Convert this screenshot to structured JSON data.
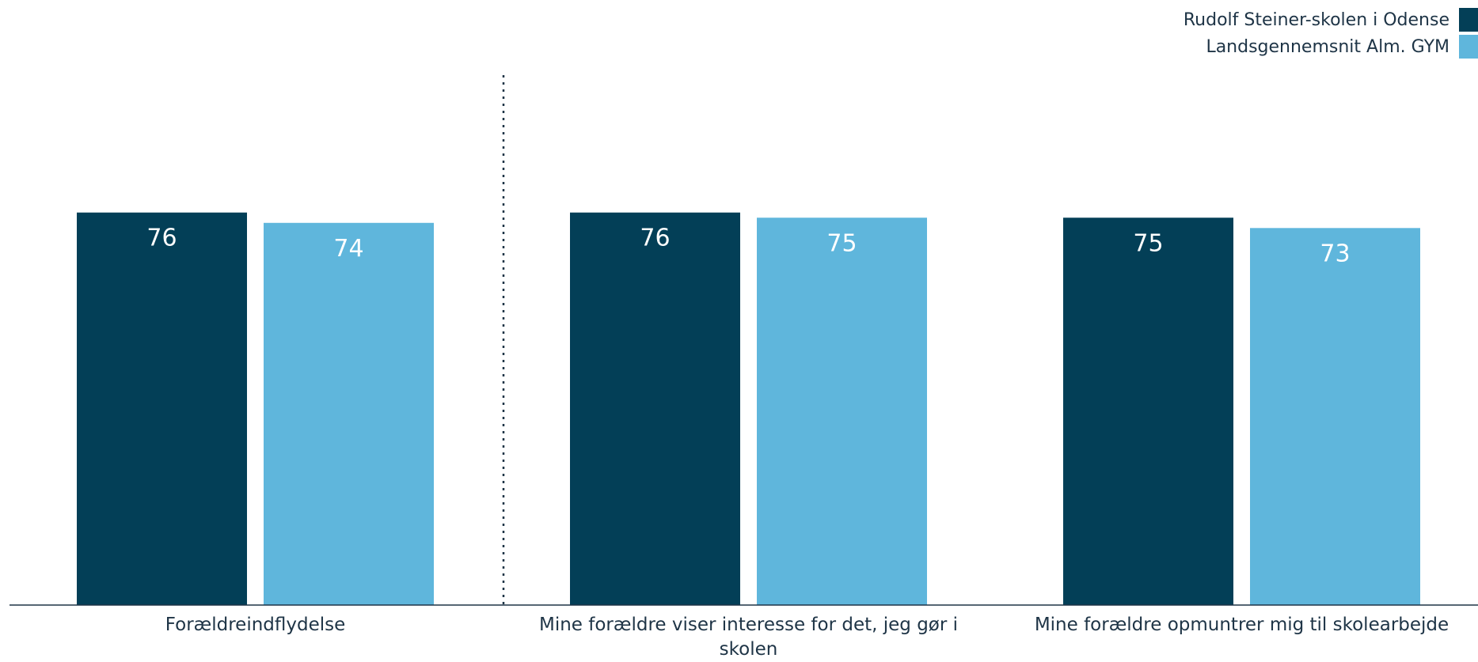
{
  "chart_data": {
    "type": "bar",
    "categories": [
      "Forældreindflydelse",
      "Mine forældre viser interesse for det, jeg gør i skolen",
      "Mine forældre opmuntrer mig til skolearbejde"
    ],
    "series": [
      {
        "name": "Rudolf Steiner-skolen i Odense",
        "values": [
          76,
          76,
          75
        ],
        "color": "#033f57"
      },
      {
        "name": "Landsgennemsnit Alm. GYM",
        "values": [
          74,
          75,
          73
        ],
        "color": "#5fb6dc"
      }
    ],
    "ylim": [
      0,
      100
    ],
    "grid": false,
    "legend_position": "top-right",
    "data_labels": true,
    "separator_after_category_index": 0
  }
}
